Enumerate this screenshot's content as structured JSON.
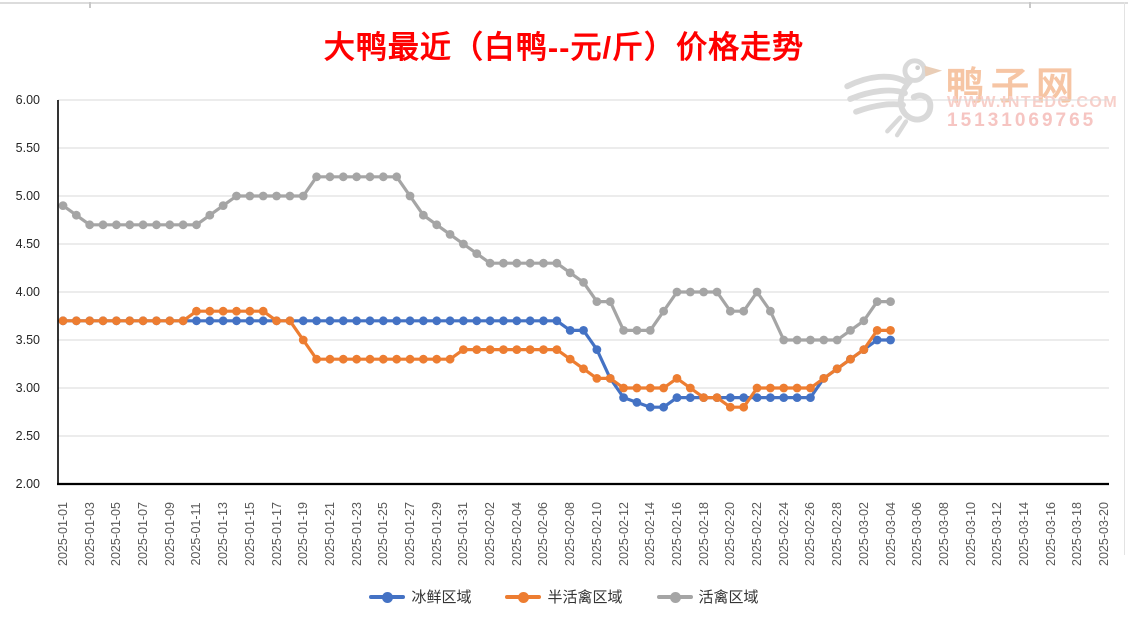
{
  "title": {
    "text": "大鸭最近（白鸭--元/斤）价格走势",
    "color": "#FF0000"
  },
  "watermark": {
    "site_name": "鸭子网",
    "url": "WWW.INTEDC.COM",
    "phone": "15131069765",
    "logo": "duck-logo",
    "logo_color": "#D9D9D9",
    "name_color": "#F6C5A4",
    "text_color": "#F8CFC9"
  },
  "chart_data": {
    "type": "line",
    "title": "大鸭最近（白鸭--元/斤）价格走势",
    "xlabel": "",
    "ylabel": "",
    "ylim": [
      2.0,
      6.0
    ],
    "ytick_step": 0.5,
    "ytick_labels": [
      "6.00",
      "5.50",
      "5.00",
      "4.50",
      "4.00",
      "3.50",
      "3.00",
      "2.50",
      "2.00"
    ],
    "grid": true,
    "legend_position": "bottom",
    "x_axis_tick_labels": [
      "2025-01-01",
      "2025-01-03",
      "2025-01-05",
      "2025-01-07",
      "2025-01-09",
      "2025-01-11",
      "2025-01-13",
      "2025-01-15",
      "2025-01-17",
      "2025-01-19",
      "2025-01-21",
      "2025-01-23",
      "2025-01-25",
      "2025-01-27",
      "2025-01-29",
      "2025-01-31",
      "2025-02-02",
      "2025-02-04",
      "2025-02-06",
      "2025-02-08",
      "2025-02-10",
      "2025-02-12",
      "2025-02-14",
      "2025-02-16",
      "2025-02-18",
      "2025-02-20",
      "2025-02-22",
      "2025-02-24",
      "2025-02-26",
      "2025-02-28",
      "2025-03-02",
      "2025-03-04",
      "2025-03-06",
      "2025-03-08",
      "2025-03-10",
      "2025-03-12",
      "2025-03-14",
      "2025-03-16",
      "2025-03-18",
      "2025-03-20"
    ],
    "dates": [
      "2025-01-01",
      "2025-01-02",
      "2025-01-03",
      "2025-01-04",
      "2025-01-05",
      "2025-01-06",
      "2025-01-07",
      "2025-01-08",
      "2025-01-09",
      "2025-01-10",
      "2025-01-11",
      "2025-01-12",
      "2025-01-13",
      "2025-01-14",
      "2025-01-15",
      "2025-01-16",
      "2025-01-17",
      "2025-01-18",
      "2025-01-19",
      "2025-01-20",
      "2025-01-21",
      "2025-01-22",
      "2025-01-23",
      "2025-01-24",
      "2025-01-25",
      "2025-01-26",
      "2025-01-27",
      "2025-01-28",
      "2025-01-29",
      "2025-01-30",
      "2025-01-31",
      "2025-02-01",
      "2025-02-02",
      "2025-02-03",
      "2025-02-04",
      "2025-02-05",
      "2025-02-06",
      "2025-02-07",
      "2025-02-08",
      "2025-02-09",
      "2025-02-10",
      "2025-02-11",
      "2025-02-12",
      "2025-02-13",
      "2025-02-14",
      "2025-02-15",
      "2025-02-16",
      "2025-02-17",
      "2025-02-18",
      "2025-02-19",
      "2025-02-20",
      "2025-02-21",
      "2025-02-22",
      "2025-02-23",
      "2025-02-24",
      "2025-02-25",
      "2025-02-26",
      "2025-02-27",
      "2025-02-28",
      "2025-03-01",
      "2025-03-02",
      "2025-03-03",
      "2025-03-04"
    ],
    "series": [
      {
        "name": "冰鲜区域",
        "color": "#4472C4",
        "values": [
          3.7,
          3.7,
          3.7,
          3.7,
          3.7,
          3.7,
          3.7,
          3.7,
          3.7,
          3.7,
          3.7,
          3.7,
          3.7,
          3.7,
          3.7,
          3.7,
          3.7,
          3.7,
          3.7,
          3.7,
          3.7,
          3.7,
          3.7,
          3.7,
          3.7,
          3.7,
          3.7,
          3.7,
          3.7,
          3.7,
          3.7,
          3.7,
          3.7,
          3.7,
          3.7,
          3.7,
          3.7,
          3.7,
          3.6,
          3.6,
          3.4,
          3.1,
          2.9,
          2.85,
          2.8,
          2.8,
          2.9,
          2.9,
          2.9,
          2.9,
          2.9,
          2.9,
          2.9,
          2.9,
          2.9,
          2.9,
          2.9,
          3.1,
          3.2,
          3.3,
          3.4,
          3.5,
          3.5
        ]
      },
      {
        "name": "半活禽区域",
        "color": "#ED7D31",
        "values": [
          3.7,
          3.7,
          3.7,
          3.7,
          3.7,
          3.7,
          3.7,
          3.7,
          3.7,
          3.7,
          3.8,
          3.8,
          3.8,
          3.8,
          3.8,
          3.8,
          3.7,
          3.7,
          3.5,
          3.3,
          3.3,
          3.3,
          3.3,
          3.3,
          3.3,
          3.3,
          3.3,
          3.3,
          3.3,
          3.3,
          3.4,
          3.4,
          3.4,
          3.4,
          3.4,
          3.4,
          3.4,
          3.4,
          3.3,
          3.2,
          3.1,
          3.1,
          3.0,
          3.0,
          3.0,
          3.0,
          3.1,
          3.0,
          2.9,
          2.9,
          2.8,
          2.8,
          3.0,
          3.0,
          3.0,
          3.0,
          3.0,
          3.1,
          3.2,
          3.3,
          3.4,
          3.6,
          3.6
        ]
      },
      {
        "name": "活禽区域",
        "color": "#A5A5A5",
        "values": [
          4.9,
          4.8,
          4.7,
          4.7,
          4.7,
          4.7,
          4.7,
          4.7,
          4.7,
          4.7,
          4.7,
          4.8,
          4.9,
          5.0,
          5.0,
          5.0,
          5.0,
          5.0,
          5.0,
          5.2,
          5.2,
          5.2,
          5.2,
          5.2,
          5.2,
          5.2,
          5.0,
          4.8,
          4.7,
          4.6,
          4.5,
          4.4,
          4.3,
          4.3,
          4.3,
          4.3,
          4.3,
          4.3,
          4.2,
          4.1,
          3.9,
          3.9,
          3.6,
          3.6,
          3.6,
          3.8,
          4.0,
          4.0,
          4.0,
          4.0,
          3.8,
          3.8,
          4.0,
          3.8,
          3.5,
          3.5,
          3.5,
          3.5,
          3.5,
          3.6,
          3.7,
          3.9,
          3.9
        ]
      }
    ]
  }
}
